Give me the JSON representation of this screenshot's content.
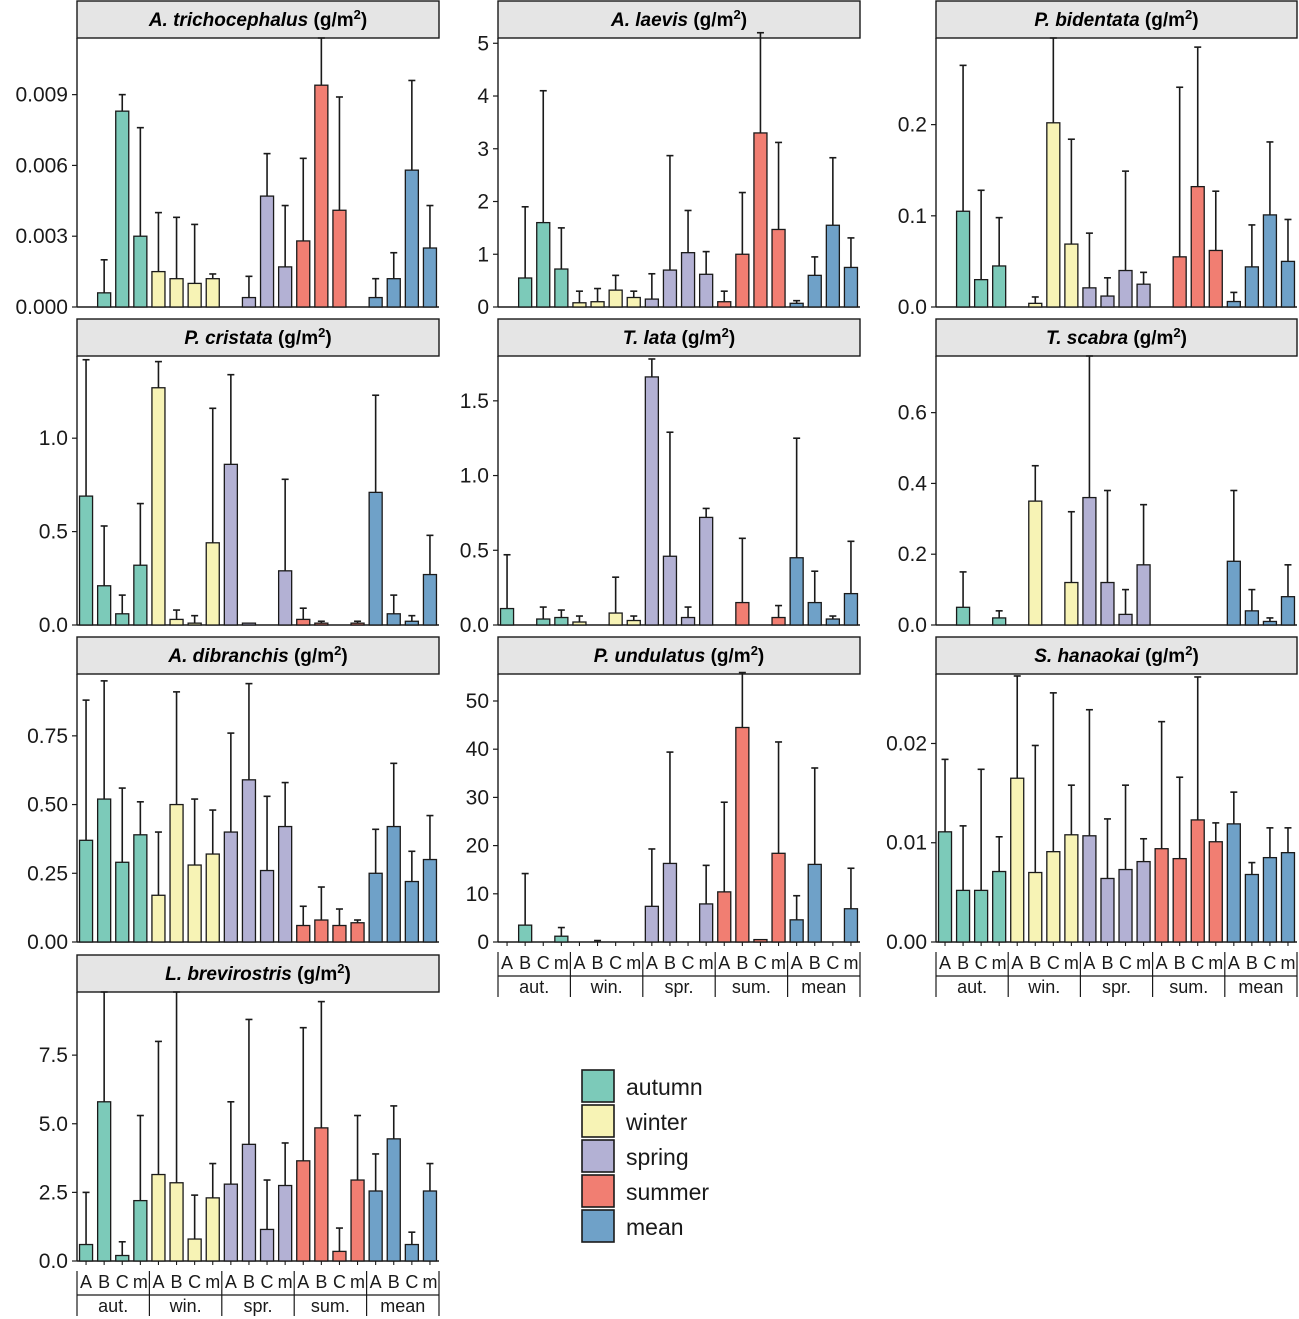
{
  "figure": {
    "units_label": "(g/m",
    "units_sup": "2",
    "units_close": ")"
  },
  "legend": {
    "items": [
      {
        "label": "autumn",
        "color": "#7ccab9"
      },
      {
        "label": "winter",
        "color": "#f7f3b5"
      },
      {
        "label": "spring",
        "color": "#b3b1d4"
      },
      {
        "label": "summer",
        "color": "#f17e72"
      },
      {
        "label": "mean",
        "color": "#6fa1c8"
      }
    ]
  },
  "chart_data": [
    {
      "type": "bar",
      "species": "A. trichocephalus",
      "title": "A. trichocephalus (g/m2)",
      "categories": [
        "A",
        "B",
        "C",
        "m"
      ],
      "groups": [
        "aut.",
        "win.",
        "spr.",
        "sum.",
        "mean"
      ],
      "ylim": [
        0,
        0.0114
      ],
      "yticks": [
        0,
        0.003,
        0.006,
        0.009
      ],
      "ytick_labels": [
        "0.000",
        "0.003",
        "0.006",
        "0.009"
      ],
      "series": [
        {
          "name": "autumn",
          "values": [
            0,
            0.0006,
            0.0083,
            0.003
          ],
          "errors": [
            0,
            0.0014,
            0.0007,
            0.0046
          ]
        },
        {
          "name": "winter",
          "values": [
            0.0015,
            0.0012,
            0.001,
            0.0012
          ],
          "errors": [
            0.0025,
            0.0026,
            0.0025,
            0.0002
          ]
        },
        {
          "name": "spring",
          "values": [
            0,
            0.0004,
            0.0047,
            0.0017
          ],
          "errors": [
            0,
            0.0009,
            0.0018,
            0.0026
          ]
        },
        {
          "name": "summer",
          "values": [
            0.0028,
            0.0094,
            0.0041,
            0
          ],
          "errors": [
            0.0035,
            0.002,
            0.0048,
            0
          ]
        },
        {
          "name": "mean",
          "values": [
            0.0004,
            0.0012,
            0.0058,
            0.0025
          ],
          "errors": [
            0.0008,
            0.0011,
            0.0038,
            0.0018
          ]
        }
      ]
    },
    {
      "type": "bar",
      "species": "A. laevis",
      "title": "A. laevis (g/m2)",
      "categories": [
        "A",
        "B",
        "C",
        "m"
      ],
      "groups": [
        "aut.",
        "win.",
        "spr.",
        "sum.",
        "mean"
      ],
      "ylim": [
        0,
        5.1
      ],
      "yticks": [
        0,
        1,
        2,
        3,
        4,
        5
      ],
      "ytick_labels": [
        "0",
        "1",
        "2",
        "3",
        "4",
        "5"
      ],
      "series": [
        {
          "name": "autumn",
          "values": [
            0,
            0.55,
            1.6,
            0.72
          ],
          "errors": [
            0,
            1.35,
            2.5,
            0.78
          ]
        },
        {
          "name": "winter",
          "values": [
            0.08,
            0.1,
            0.32,
            0.18
          ],
          "errors": [
            0.22,
            0.25,
            0.28,
            0.12
          ]
        },
        {
          "name": "spring",
          "values": [
            0.15,
            0.7,
            1.03,
            0.62
          ],
          "errors": [
            0.48,
            2.17,
            0.8,
            0.43
          ]
        },
        {
          "name": "summer",
          "values": [
            0.1,
            1.0,
            3.3,
            1.47
          ],
          "errors": [
            0.2,
            1.17,
            1.9,
            1.65
          ]
        },
        {
          "name": "mean",
          "values": [
            0.07,
            0.6,
            1.55,
            0.75
          ],
          "errors": [
            0.05,
            0.35,
            1.28,
            0.56
          ]
        }
      ]
    },
    {
      "type": "bar",
      "species": "P. bidentata",
      "title": "P. bidentata (g/m2)",
      "categories": [
        "A",
        "B",
        "C",
        "m"
      ],
      "groups": [
        "aut.",
        "win.",
        "spr.",
        "sum.",
        "mean"
      ],
      "ylim": [
        0,
        0.295
      ],
      "yticks": [
        0,
        0.1,
        0.2
      ],
      "ytick_labels": [
        "0.0",
        "0.1",
        "0.2"
      ],
      "series": [
        {
          "name": "autumn",
          "values": [
            0,
            0.105,
            0.03,
            0.045
          ],
          "errors": [
            0,
            0.16,
            0.098,
            0.053
          ]
        },
        {
          "name": "winter",
          "values": [
            0,
            0.004,
            0.202,
            0.069
          ],
          "errors": [
            0,
            0.007,
            0.093,
            0.115
          ]
        },
        {
          "name": "spring",
          "values": [
            0.021,
            0.012,
            0.04,
            0.025
          ],
          "errors": [
            0.06,
            0.02,
            0.109,
            0.013
          ]
        },
        {
          "name": "summer",
          "values": [
            0,
            0.055,
            0.132,
            0.062
          ],
          "errors": [
            0,
            0.186,
            0.153,
            0.065
          ]
        },
        {
          "name": "mean",
          "values": [
            0.006,
            0.044,
            0.101,
            0.05
          ],
          "errors": [
            0.01,
            0.046,
            0.08,
            0.046
          ]
        }
      ]
    },
    {
      "type": "bar",
      "species": "P. cristata",
      "title": "P. cristata (g/m2)",
      "categories": [
        "A",
        "B",
        "C",
        "m"
      ],
      "groups": [
        "aut.",
        "win.",
        "spr.",
        "sum.",
        "mean"
      ],
      "ylim": [
        0,
        1.44
      ],
      "yticks": [
        0,
        0.5,
        1.0
      ],
      "ytick_labels": [
        "0.0",
        "0.5",
        "1.0"
      ],
      "series": [
        {
          "name": "autumn",
          "values": [
            0.69,
            0.21,
            0.06,
            0.32
          ],
          "errors": [
            0.73,
            0.32,
            0.1,
            0.33
          ]
        },
        {
          "name": "winter",
          "values": [
            1.27,
            0.03,
            0.01,
            0.44
          ],
          "errors": [
            0.14,
            0.05,
            0.04,
            0.72
          ]
        },
        {
          "name": "spring",
          "values": [
            0.86,
            0.01,
            0,
            0.29
          ],
          "errors": [
            0.48,
            0,
            0,
            0.49
          ]
        },
        {
          "name": "summer",
          "values": [
            0.03,
            0.01,
            0,
            0.01
          ],
          "errors": [
            0.06,
            0.01,
            0,
            0.01
          ]
        },
        {
          "name": "mean",
          "values": [
            0.71,
            0.06,
            0.02,
            0.27
          ],
          "errors": [
            0.52,
            0.1,
            0.03,
            0.21
          ]
        }
      ]
    },
    {
      "type": "bar",
      "species": "T. lata",
      "title": "T. lata (g/m2)",
      "categories": [
        "A",
        "B",
        "C",
        "m"
      ],
      "groups": [
        "aut.",
        "win.",
        "spr.",
        "sum.",
        "mean"
      ],
      "ylim": [
        0,
        1.8
      ],
      "yticks": [
        0,
        0.5,
        1.0,
        1.5
      ],
      "ytick_labels": [
        "0.0",
        "0.5",
        "1.0",
        "1.5"
      ],
      "series": [
        {
          "name": "autumn",
          "values": [
            0.11,
            0,
            0.04,
            0.05
          ],
          "errors": [
            0.36,
            0,
            0.08,
            0.05
          ]
        },
        {
          "name": "winter",
          "values": [
            0.02,
            0,
            0.08,
            0.03
          ],
          "errors": [
            0.04,
            0,
            0.24,
            0.03
          ]
        },
        {
          "name": "spring",
          "values": [
            1.66,
            0.46,
            0.05,
            0.72
          ],
          "errors": [
            0.12,
            0.83,
            0.07,
            0.06
          ]
        },
        {
          "name": "summer",
          "values": [
            0,
            0.15,
            0,
            0.05
          ],
          "errors": [
            0,
            0.43,
            0,
            0.08
          ]
        },
        {
          "name": "mean",
          "values": [
            0.45,
            0.15,
            0.04,
            0.21
          ],
          "errors": [
            0.8,
            0.21,
            0.02,
            0.35
          ]
        }
      ]
    },
    {
      "type": "bar",
      "species": "T. scabra",
      "title": "T. scabra (g/m2)",
      "categories": [
        "A",
        "B",
        "C",
        "m"
      ],
      "groups": [
        "aut.",
        "win.",
        "spr.",
        "sum.",
        "mean"
      ],
      "ylim": [
        0,
        0.76
      ],
      "yticks": [
        0,
        0.2,
        0.4,
        0.6
      ],
      "ytick_labels": [
        "0.0",
        "0.2",
        "0.4",
        "0.6"
      ],
      "series": [
        {
          "name": "autumn",
          "values": [
            0,
            0.05,
            0,
            0.02
          ],
          "errors": [
            0,
            0.1,
            0,
            0.02
          ]
        },
        {
          "name": "winter",
          "values": [
            0,
            0.35,
            0,
            0.12
          ],
          "errors": [
            0,
            0.1,
            0,
            0.2
          ]
        },
        {
          "name": "spring",
          "values": [
            0.36,
            0.12,
            0.03,
            0.17
          ],
          "errors": [
            0.4,
            0.26,
            0.07,
            0.17
          ]
        },
        {
          "name": "summer",
          "values": [
            0,
            0,
            0,
            0
          ],
          "errors": [
            0,
            0,
            0,
            0
          ]
        },
        {
          "name": "mean",
          "values": [
            0.18,
            0.04,
            0.01,
            0.08
          ],
          "errors": [
            0.2,
            0.06,
            0.01,
            0.09
          ]
        }
      ]
    },
    {
      "type": "bar",
      "species": "A. dibranchis",
      "title": "A. dibranchis (g/m2)",
      "categories": [
        "A",
        "B",
        "C",
        "m"
      ],
      "groups": [
        "aut.",
        "win.",
        "spr.",
        "sum.",
        "mean"
      ],
      "ylim": [
        0,
        0.975
      ],
      "yticks": [
        0,
        0.25,
        0.5,
        0.75
      ],
      "ytick_labels": [
        "0.00",
        "0.25",
        "0.50",
        "0.75"
      ],
      "series": [
        {
          "name": "autumn",
          "values": [
            0.37,
            0.52,
            0.29,
            0.39
          ],
          "errors": [
            0.51,
            0.43,
            0.27,
            0.12
          ]
        },
        {
          "name": "winter",
          "values": [
            0.17,
            0.5,
            0.28,
            0.32
          ],
          "errors": [
            0.23,
            0.41,
            0.24,
            0.16
          ]
        },
        {
          "name": "spring",
          "values": [
            0.4,
            0.59,
            0.26,
            0.42
          ],
          "errors": [
            0.36,
            0.35,
            0.27,
            0.16
          ]
        },
        {
          "name": "summer",
          "values": [
            0.06,
            0.08,
            0.06,
            0.07
          ],
          "errors": [
            0.07,
            0.12,
            0.06,
            0.01
          ]
        },
        {
          "name": "mean",
          "values": [
            0.25,
            0.42,
            0.22,
            0.3
          ],
          "errors": [
            0.16,
            0.23,
            0.11,
            0.16
          ]
        }
      ]
    },
    {
      "type": "bar",
      "species": "P. undulatus",
      "title": "P. undulatus (g/m2)",
      "categories": [
        "A",
        "B",
        "C",
        "m"
      ],
      "groups": [
        "aut.",
        "win.",
        "spr.",
        "sum.",
        "mean"
      ],
      "ylim": [
        0,
        55.6
      ],
      "yticks": [
        0,
        10,
        20,
        30,
        40,
        50
      ],
      "ytick_labels": [
        "0",
        "10",
        "20",
        "30",
        "40",
        "50"
      ],
      "series": [
        {
          "name": "autumn",
          "values": [
            0,
            3.5,
            0,
            1.2
          ],
          "errors": [
            0,
            10.7,
            0,
            1.8
          ]
        },
        {
          "name": "winter",
          "values": [
            0,
            0,
            0,
            0
          ],
          "errors": [
            0,
            0.3,
            0,
            0
          ]
        },
        {
          "name": "spring",
          "values": [
            7.4,
            16.3,
            0,
            7.9
          ],
          "errors": [
            11.9,
            23.1,
            0,
            8.0
          ]
        },
        {
          "name": "summer",
          "values": [
            10.4,
            44.5,
            0.5,
            18.4
          ],
          "errors": [
            18.6,
            11.4,
            0,
            23.1
          ]
        },
        {
          "name": "mean",
          "values": [
            4.6,
            16.1,
            0,
            6.9
          ],
          "errors": [
            5.0,
            20.0,
            0,
            8.4
          ]
        }
      ]
    },
    {
      "type": "bar",
      "species": "S. hanaokai",
      "title": "S. hanaokai (g/m2)",
      "categories": [
        "A",
        "B",
        "C",
        "m"
      ],
      "groups": [
        "aut.",
        "win.",
        "spr.",
        "sum.",
        "mean"
      ],
      "ylim": [
        0,
        0.027
      ],
      "yticks": [
        0,
        0.01,
        0.02
      ],
      "ytick_labels": [
        "0.00",
        "0.01",
        "0.02"
      ],
      "series": [
        {
          "name": "autumn",
          "values": [
            0.0111,
            0.0052,
            0.0052,
            0.0071
          ],
          "errors": [
            0.0073,
            0.0065,
            0.0122,
            0.0035
          ]
        },
        {
          "name": "winter",
          "values": [
            0.0165,
            0.007,
            0.0091,
            0.0108
          ],
          "errors": [
            0.0103,
            0.0128,
            0.016,
            0.005
          ]
        },
        {
          "name": "spring",
          "values": [
            0.0107,
            0.0064,
            0.0073,
            0.0081
          ],
          "errors": [
            0.0127,
            0.006,
            0.0085,
            0.0023
          ]
        },
        {
          "name": "summer",
          "values": [
            0.0094,
            0.0084,
            0.0123,
            0.0101
          ],
          "errors": [
            0.0128,
            0.0082,
            0.0144,
            0.0019
          ]
        },
        {
          "name": "mean",
          "values": [
            0.0119,
            0.0068,
            0.0085,
            0.009
          ],
          "errors": [
            0.0032,
            0.0012,
            0.003,
            0.0025
          ]
        }
      ]
    },
    {
      "type": "bar",
      "species": "L. brevirostris",
      "title": "L. brevirostris (g/m2)",
      "categories": [
        "A",
        "B",
        "C",
        "m"
      ],
      "groups": [
        "aut.",
        "win.",
        "spr.",
        "sum.",
        "mean"
      ],
      "ylim": [
        0,
        9.8
      ],
      "yticks": [
        0,
        2.5,
        5.0,
        7.5
      ],
      "ytick_labels": [
        "0.0",
        "2.5",
        "5.0",
        "7.5"
      ],
      "series": [
        {
          "name": "autumn",
          "values": [
            0.6,
            5.8,
            0.2,
            2.2
          ],
          "errors": [
            1.9,
            4.0,
            0.5,
            3.1
          ]
        },
        {
          "name": "winter",
          "values": [
            3.15,
            2.85,
            0.8,
            2.3
          ],
          "errors": [
            4.85,
            6.95,
            1.6,
            1.25
          ]
        },
        {
          "name": "spring",
          "values": [
            2.8,
            4.25,
            1.15,
            2.75
          ],
          "errors": [
            3.0,
            4.55,
            1.8,
            1.55
          ]
        },
        {
          "name": "summer",
          "values": [
            3.65,
            4.85,
            0.35,
            2.95
          ],
          "errors": [
            4.85,
            4.6,
            0.85,
            2.35
          ]
        },
        {
          "name": "mean",
          "values": [
            2.55,
            4.45,
            0.6,
            2.55
          ],
          "errors": [
            1.35,
            1.2,
            0.45,
            1.0
          ]
        }
      ]
    }
  ]
}
